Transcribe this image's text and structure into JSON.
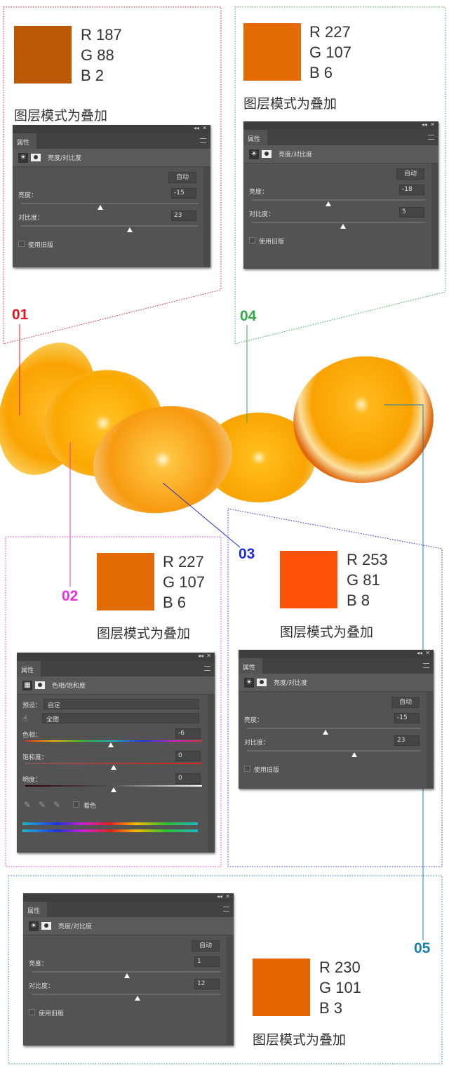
{
  "caption": "图层模式为叠加",
  "swatches": [
    {
      "id": "01",
      "r": "R 187",
      "g": "G 88",
      "b": "B 2",
      "hex": "#bb5802"
    },
    {
      "id": "04",
      "r": "R 227",
      "g": "G 107",
      "b": "B 6",
      "hex": "#e36b06"
    },
    {
      "id": "02",
      "r": "R 227",
      "g": "G 107",
      "b": "B 6",
      "hex": "#e36b06"
    },
    {
      "id": "03",
      "r": "R 253",
      "g": "G 81",
      "b": "B 8",
      "hex": "#fd5108"
    },
    {
      "id": "05",
      "r": "R 230",
      "g": "G 101",
      "b": "B 3",
      "hex": "#e66503"
    }
  ],
  "labels": {
    "l01": "01",
    "l02": "02",
    "l03": "03",
    "l04": "04",
    "l05": "05"
  },
  "colors": {
    "l01": "#e8141c",
    "l02": "#e930e0",
    "l03": "#1e2bd8",
    "l04": "#35a84a",
    "l05": "#1a7fb0"
  },
  "panel_common": {
    "tab": "属性",
    "collapse": "◂◂",
    "close": "✕",
    "auto": "自动",
    "legacy": "使用旧版",
    "brightness_label": "亮度：",
    "contrast_label": "对比度：",
    "bc_title": "亮度/对比度"
  },
  "bc_panels": [
    {
      "brightness": -15,
      "contrast": 23
    },
    {
      "brightness": -18,
      "contrast": 5
    },
    {
      "brightness": -15,
      "contrast": 23
    },
    {
      "brightness": 1,
      "contrast": 12
    }
  ],
  "hs_panel": {
    "title": "色相/饱和度",
    "preset_label": "预设：",
    "preset": "自定",
    "channel": "全图",
    "hue_label": "色相：",
    "hue": -6,
    "sat_label": "饱和度：",
    "sat": 0,
    "light_label": "明度：",
    "light": 0,
    "colorize": "着色"
  }
}
